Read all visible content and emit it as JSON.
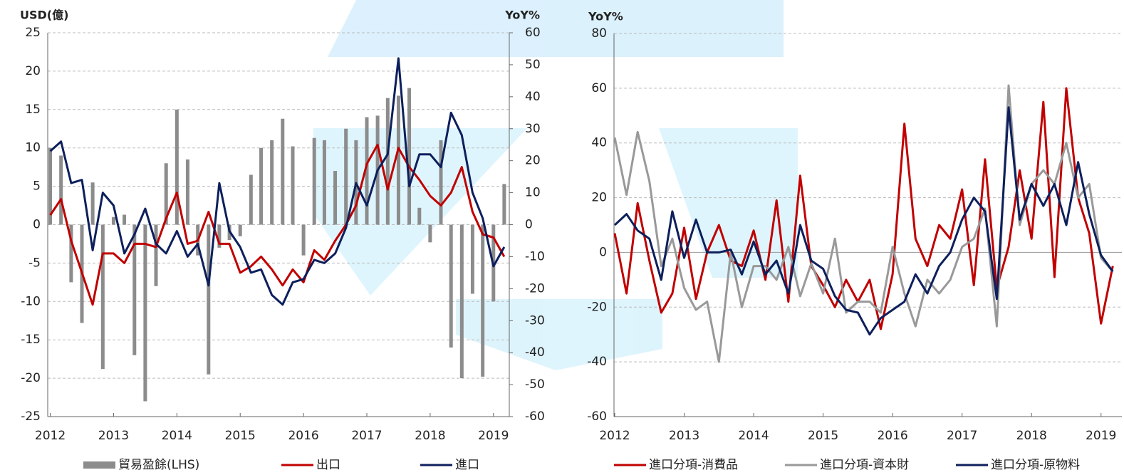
{
  "chart_data": [
    {
      "type": "combo",
      "y_label": "USD(億)",
      "y2_label": "YoY%",
      "x": [
        2012.0,
        2012.17,
        2012.33,
        2012.5,
        2012.67,
        2012.83,
        2013.0,
        2013.17,
        2013.33,
        2013.5,
        2013.67,
        2013.83,
        2014.0,
        2014.17,
        2014.33,
        2014.5,
        2014.67,
        2014.83,
        2015.0,
        2015.17,
        2015.33,
        2015.5,
        2015.67,
        2015.83,
        2016.0,
        2016.17,
        2016.33,
        2016.5,
        2016.67,
        2016.83,
        2017.0,
        2017.17,
        2017.33,
        2017.5,
        2017.67,
        2017.83,
        2018.0,
        2018.17,
        2018.33,
        2018.5,
        2018.67,
        2018.83,
        2019.0,
        2019.17
      ],
      "xlim": [
        2011.96,
        2019.25
      ],
      "xticks": [
        2012,
        2013,
        2014,
        2015,
        2016,
        2017,
        2018,
        2019
      ],
      "ylim": [
        -25,
        25
      ],
      "yticks": [
        -25,
        -20,
        -15,
        -10,
        -5,
        0,
        5,
        10,
        15,
        20,
        25
      ],
      "y2lim": [
        -60,
        60
      ],
      "y2ticks": [
        -60,
        -50,
        -40,
        -30,
        -20,
        -10,
        0,
        10,
        20,
        30,
        40,
        50,
        60
      ],
      "grid": true,
      "series": [
        {
          "name": "貿易盈餘(LHS)",
          "kind": "bar",
          "color": "#8c8c8c",
          "values": [
            10,
            9,
            -7.5,
            -12.8,
            5.5,
            -18.8,
            1,
            1.3,
            -17,
            -23,
            -8,
            8,
            15,
            8.5,
            -4,
            -19.5,
            -3,
            -2,
            -1.5,
            6.5,
            10,
            11,
            13.8,
            10.2,
            -4,
            11.3,
            11,
            7,
            12.5,
            11,
            14,
            14.2,
            16.5,
            16.8,
            17.8,
            2.2,
            -2.3,
            11,
            -16,
            -20,
            -9,
            -19.8,
            -10,
            5.3
          ]
        },
        {
          "name": "出口",
          "kind": "line",
          "axis": "y2",
          "color": "#c00000",
          "values": [
            3,
            8,
            -5,
            -15,
            -25,
            -9,
            -9,
            -12,
            -6,
            -6,
            -7,
            2,
            10,
            -6,
            -5,
            4,
            -6,
            -6,
            -15,
            -13,
            -10,
            -14,
            -19,
            -14,
            -18,
            -8,
            -11,
            -5,
            0,
            6,
            19,
            25,
            11,
            24,
            18,
            14,
            9,
            6,
            10,
            18,
            4,
            -3,
            -4,
            -10
          ]
        },
        {
          "name": "進口",
          "kind": "line",
          "axis": "y2",
          "color": "#0d1f5c",
          "values": [
            23,
            26,
            13,
            14,
            -8,
            10,
            6,
            -9,
            -3,
            5,
            -6,
            -9,
            -2,
            -10,
            -6,
            -19,
            13,
            -2,
            -7,
            -15,
            -14,
            -22,
            -25,
            -18,
            -17,
            -11,
            -12,
            -9,
            -1,
            13,
            6,
            17,
            22,
            52,
            12,
            22,
            22,
            18,
            35,
            28,
            10,
            2,
            -13,
            -7
          ]
        }
      ]
    },
    {
      "type": "line",
      "y_label": "YoY%",
      "x": [
        2012.0,
        2012.17,
        2012.33,
        2012.5,
        2012.67,
        2012.83,
        2013.0,
        2013.17,
        2013.33,
        2013.5,
        2013.67,
        2013.83,
        2014.0,
        2014.17,
        2014.33,
        2014.5,
        2014.67,
        2014.83,
        2015.0,
        2015.17,
        2015.33,
        2015.5,
        2015.67,
        2015.83,
        2016.0,
        2016.17,
        2016.33,
        2016.5,
        2016.67,
        2016.83,
        2017.0,
        2017.17,
        2017.33,
        2017.5,
        2017.67,
        2017.83,
        2018.0,
        2018.17,
        2018.33,
        2018.5,
        2018.67,
        2018.83,
        2019.0,
        2019.17
      ],
      "xlim": [
        2011.99,
        2019.3
      ],
      "xticks": [
        2012,
        2013,
        2014,
        2015,
        2016,
        2017,
        2018,
        2019
      ],
      "ylim": [
        -60,
        80
      ],
      "yticks": [
        -60,
        -40,
        -20,
        0,
        20,
        40,
        60,
        80
      ],
      "grid": true,
      "series": [
        {
          "name": "進口分項-消費品",
          "color": "#c00000",
          "values": [
            7,
            -15,
            18,
            -3,
            -22,
            -15,
            9,
            -17,
            0,
            10,
            -3,
            -5,
            8,
            -10,
            19,
            -18,
            28,
            -5,
            -12,
            -20,
            -10,
            -18,
            -10,
            -28,
            -8,
            47,
            5,
            -5,
            10,
            5,
            23,
            -12,
            34,
            -13,
            2,
            30,
            5,
            55,
            -9,
            60,
            20,
            7,
            -26,
            -5
          ]
        },
        {
          "name": "進口分項-資本財",
          "color": "#999999",
          "values": [
            42,
            21,
            44,
            26,
            -5,
            5,
            -13,
            -21,
            -18,
            -40,
            0,
            -20,
            -5,
            -5,
            -10,
            2,
            -16,
            -4,
            -15,
            5,
            -22,
            -18,
            -18,
            -22,
            2,
            -15,
            -27,
            -10,
            -15,
            -10,
            2,
            5,
            16,
            -27,
            61,
            10,
            25,
            30,
            25,
            40,
            20,
            25,
            -2,
            -7
          ]
        },
        {
          "name": "進口分項-原物料",
          "color": "#0d1f5c",
          "values": [
            10,
            14,
            8,
            5,
            -10,
            15,
            -2,
            12,
            0,
            0,
            1,
            -8,
            4,
            -8,
            -3,
            -15,
            10,
            -3,
            -6,
            -16,
            -21,
            -22,
            -30,
            -24,
            -21,
            -18,
            -8,
            -15,
            -5,
            0,
            12,
            20,
            15,
            -17,
            53,
            12,
            25,
            17,
            25,
            10,
            33,
            14,
            -1,
            -7
          ]
        }
      ]
    }
  ]
}
